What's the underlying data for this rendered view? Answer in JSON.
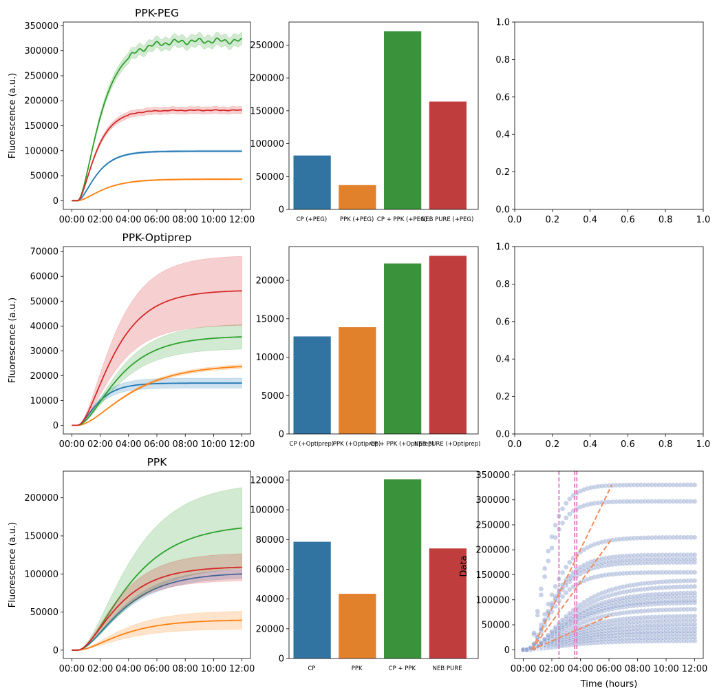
{
  "colors": {
    "blue": "#1f77b4",
    "orange": "#ff7f0e",
    "green": "#2ca02c",
    "red": "#d62728",
    "bar_blue": "#3274a1",
    "bar_orange": "#e1812c",
    "bar_green": "#3a923a",
    "bar_red": "#c03d3e",
    "scatter": "#93a5d0",
    "fit": "#f08a5d",
    "vline": "#e377c2"
  },
  "chart_data": [
    {
      "id": "ppk-peg-line",
      "type": "line",
      "title": "PPK-PEG",
      "ylabel": "Fluorescence (a.u.)",
      "xlabel": "",
      "xlim": [
        -0.6,
        12.6
      ],
      "ylim": [
        -17500,
        357500
      ],
      "xticks": [
        0,
        2,
        4,
        6,
        8,
        10,
        12
      ],
      "xticklabels": [
        "00:00",
        "02:00",
        "04:00",
        "06:00",
        "08:00",
        "10:00",
        "12:00"
      ],
      "yticks": [
        0,
        50000,
        100000,
        150000,
        200000,
        250000,
        300000,
        350000
      ],
      "yticklabels": [
        "0",
        "50000",
        "100000",
        "150000",
        "200000",
        "250000",
        "300000",
        "350000"
      ],
      "series": [
        {
          "name": "CP (+PEG)",
          "color": "blue",
          "plateau": 99000,
          "onset": 0.4,
          "k": 0.95,
          "band": 2000,
          "noise": 0
        },
        {
          "name": "PPK (+PEG)",
          "color": "orange",
          "plateau": 43000,
          "onset": 0.4,
          "k": 0.7,
          "band": 1500,
          "noise": 0
        },
        {
          "name": "CP + PPK (+PEG)",
          "color": "green",
          "plateau": 320000,
          "onset": 0.4,
          "k": 0.8,
          "band": 12000,
          "noise": 6000
        },
        {
          "name": "NEB PURE (+PEG)",
          "color": "red",
          "plateau": 181000,
          "onset": 0.4,
          "k": 1.0,
          "band": 7000,
          "noise": 1000
        }
      ]
    },
    {
      "id": "ppk-peg-bar",
      "type": "bar",
      "title": "",
      "categories": [
        "CP (+PEG)",
        "PPK (+PEG)",
        "CP + PPK (+PEG)",
        "NEB PURE (+PEG)"
      ],
      "values": [
        82000,
        37000,
        271000,
        164000
      ],
      "bar_colors": [
        "bar_blue",
        "bar_orange",
        "bar_green",
        "bar_red"
      ],
      "ylim": [
        0,
        285000
      ],
      "yticks": [
        0,
        50000,
        100000,
        150000,
        200000,
        250000
      ],
      "yticklabels": [
        "0",
        "50000",
        "100000",
        "150000",
        "200000",
        "250000"
      ]
    },
    {
      "id": "empty-top",
      "type": "empty",
      "xlim": [
        0,
        1
      ],
      "ylim": [
        0,
        1
      ],
      "xticks": [
        0,
        0.2,
        0.4,
        0.6,
        0.8,
        1.0
      ],
      "xticklabels": [
        "0.0",
        "0.2",
        "0.4",
        "0.6",
        "0.8",
        "1.0"
      ],
      "yticks": [
        0,
        0.2,
        0.4,
        0.6,
        0.8,
        1.0
      ],
      "yticklabels": [
        "0.0",
        "0.2",
        "0.4",
        "0.6",
        "0.8",
        "1.0"
      ]
    },
    {
      "id": "ppk-optiprep-line",
      "type": "line",
      "title": "PPK-Optiprep",
      "ylabel": "Fluorescence (a.u.)",
      "xlabel": "",
      "xlim": [
        -0.6,
        12.6
      ],
      "ylim": [
        -3500,
        72000
      ],
      "xticks": [
        0,
        2,
        4,
        6,
        8,
        10,
        12
      ],
      "xticklabels": [
        "00:00",
        "02:00",
        "04:00",
        "06:00",
        "08:00",
        "10:00",
        "12:00"
      ],
      "yticks": [
        0,
        10000,
        20000,
        30000,
        40000,
        50000,
        60000,
        70000
      ],
      "yticklabels": [
        "0",
        "10000",
        "20000",
        "30000",
        "40000",
        "50000",
        "60000",
        "70000"
      ],
      "series": [
        {
          "name": "CP (+Optiprep)",
          "color": "blue",
          "plateau": 17000,
          "onset": 0.4,
          "k": 0.9,
          "band": 2000,
          "noise": 0
        },
        {
          "name": "PPK (+Optiprep)",
          "color": "orange",
          "plateau": 24500,
          "onset": 0.4,
          "k": 0.35,
          "band": 800,
          "noise": 0
        },
        {
          "name": "CP + PPK (+Optiprep)",
          "color": "green",
          "plateau": 36000,
          "onset": 0.4,
          "k": 0.45,
          "band": 5000,
          "noise": 0
        },
        {
          "name": "NEB PURE (+Optiprep)",
          "color": "red",
          "plateau": 54500,
          "onset": 0.4,
          "k": 0.5,
          "band": 14000,
          "noise": 0
        }
      ]
    },
    {
      "id": "ppk-optiprep-bar",
      "type": "bar",
      "title": "",
      "categories": [
        "CP (+Optiprep)",
        "PPK (+Optiprep)",
        "CP + PPK (+Optiprep)",
        "NEB PURE (+Optiprep)"
      ],
      "values": [
        12700,
        13900,
        22200,
        23200
      ],
      "bar_colors": [
        "bar_blue",
        "bar_orange",
        "bar_green",
        "bar_red"
      ],
      "ylim": [
        0,
        24400
      ],
      "yticks": [
        0,
        5000,
        10000,
        15000,
        20000
      ],
      "yticklabels": [
        "0",
        "5000",
        "10000",
        "15000",
        "20000"
      ]
    },
    {
      "id": "empty-middle",
      "type": "empty",
      "xlim": [
        0,
        1
      ],
      "ylim": [
        0,
        1
      ],
      "xticks": [
        0,
        0.2,
        0.4,
        0.6,
        0.8,
        1.0
      ],
      "xticklabels": [
        "0.0",
        "0.2",
        "0.4",
        "0.6",
        "0.8",
        "1.0"
      ],
      "yticks": [
        0,
        0.2,
        0.4,
        0.6,
        0.8,
        1.0
      ],
      "yticklabels": [
        "0.0",
        "0.2",
        "0.4",
        "0.6",
        "0.8",
        "1.0"
      ]
    },
    {
      "id": "ppk-line",
      "type": "line",
      "title": "PPK",
      "ylabel": "Fluorescence (a.u.)",
      "xlabel": "",
      "xlim": [
        -0.6,
        12.6
      ],
      "ylim": [
        -11000,
        235000
      ],
      "xticks": [
        0,
        2,
        4,
        6,
        8,
        10,
        12
      ],
      "xticklabels": [
        "00:00",
        "02:00",
        "04:00",
        "06:00",
        "08:00",
        "10:00",
        "12:00"
      ],
      "yticks": [
        0,
        50000,
        100000,
        150000,
        200000
      ],
      "yticklabels": [
        "0",
        "50000",
        "100000",
        "150000",
        "200000"
      ],
      "series": [
        {
          "name": "CP",
          "color": "blue",
          "plateau": 102000,
          "onset": 0.4,
          "k": 0.4,
          "band": 6000,
          "noise": 0
        },
        {
          "name": "PPK",
          "color": "orange",
          "plateau": 40000,
          "onset": 0.4,
          "k": 0.4,
          "band": 12000,
          "noise": 0
        },
        {
          "name": "CP + PPK",
          "color": "green",
          "plateau": 166000,
          "onset": 0.4,
          "k": 0.35,
          "band": 55000,
          "noise": 0
        },
        {
          "name": "NEB PURE",
          "color": "red",
          "plateau": 110000,
          "onset": 0.4,
          "k": 0.45,
          "band": 18000,
          "noise": 0
        }
      ]
    },
    {
      "id": "ppk-bar",
      "type": "bar",
      "title": "",
      "categories": [
        "CP",
        "PPK",
        "CP + PPK",
        "NEB PURE"
      ],
      "values": [
        78500,
        43500,
        120500,
        74000
      ],
      "bar_colors": [
        "bar_blue",
        "bar_orange",
        "bar_green",
        "bar_red"
      ],
      "ylim": [
        0,
        126000
      ],
      "yticks": [
        0,
        20000,
        40000,
        60000,
        80000,
        100000,
        120000
      ],
      "yticklabels": [
        "0",
        "20000",
        "40000",
        "60000",
        "80000",
        "100000",
        "120000"
      ]
    },
    {
      "id": "fit-scatter",
      "type": "scatter",
      "title": "",
      "xlabel": "Time (hours)",
      "ylabel": "Data",
      "xlim": [
        -0.6,
        12.6
      ],
      "ylim": [
        -17500,
        357500
      ],
      "xticks": [
        0,
        2,
        4,
        6,
        8,
        10,
        12
      ],
      "xticklabels": [
        "00:00",
        "02:00",
        "04:00",
        "06:00",
        "08:00",
        "10:00",
        "12:00"
      ],
      "yticks": [
        0,
        50000,
        100000,
        150000,
        200000,
        250000,
        300000,
        350000
      ],
      "yticklabels": [
        "0",
        "50000",
        "100000",
        "150000",
        "200000",
        "250000",
        "300000",
        "350000"
      ],
      "plateaus": [
        18000,
        25000,
        32000,
        38000,
        45000,
        52000,
        60000,
        68000,
        82000,
        95000,
        100000,
        108000,
        115000,
        128000,
        140000,
        155000,
        175000,
        182000,
        190000,
        225000,
        297000,
        330000
      ],
      "vlines": [
        2.5,
        3.6,
        3.75
      ],
      "fit_lines": [
        {
          "x": [
            0.6,
            6.2
          ],
          "y": [
            0,
            330000
          ]
        },
        {
          "x": [
            0.6,
            6.2
          ],
          "y": [
            0,
            222000
          ]
        },
        {
          "x": [
            0.6,
            6.2
          ],
          "y": [
            0,
            70000
          ]
        }
      ]
    }
  ]
}
